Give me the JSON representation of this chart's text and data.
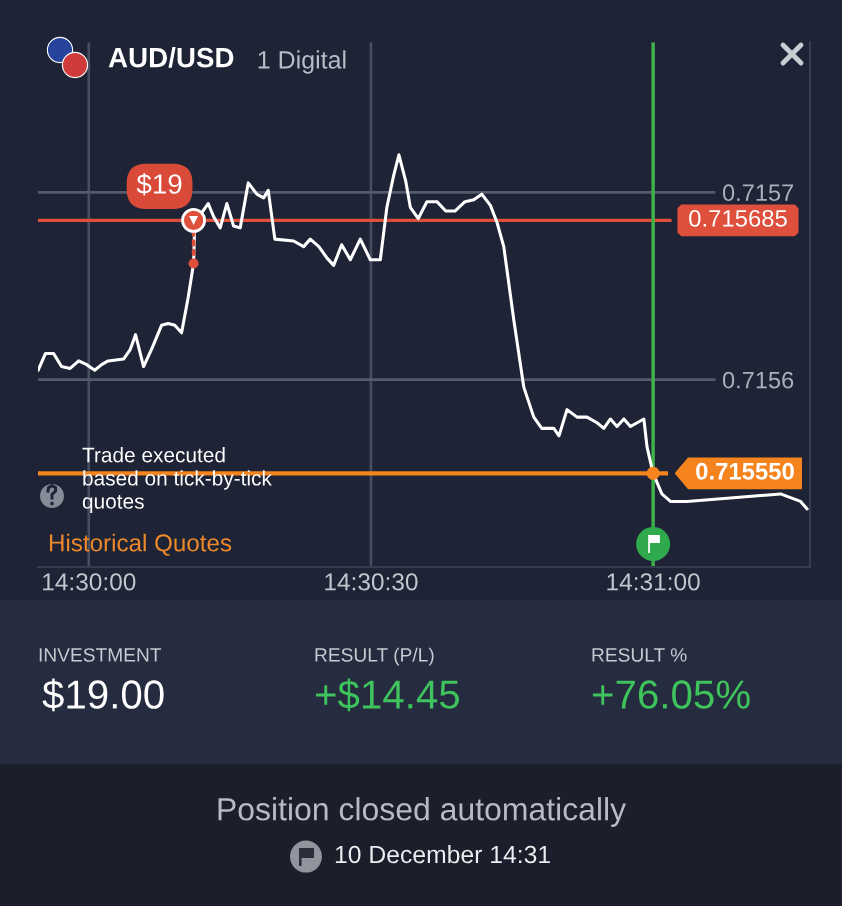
{
  "chart_data": {
    "type": "line",
    "title": "AUD/USD",
    "subtitle": "1 Digital",
    "x": [
      14.498503,
      14.498722,
      14.498958,
      14.499194,
      14.499448,
      14.499703,
      14.499939,
      14.500176,
      14.500377,
      14.500571,
      14.501027,
      14.501222,
      14.501381,
      14.501618,
      14.501872,
      14.502149,
      14.502345,
      14.50254,
      14.502741,
      14.502936,
      14.503095,
      14.503131,
      14.503332,
      14.503527,
      14.503686,
      14.503881,
      14.504076,
      14.504277,
      14.504472,
      14.504709,
      14.504963,
      14.505164,
      14.5053,
      14.505495,
      14.50605,
      14.506346,
      14.506541,
      14.506795,
      14.507031,
      14.507232,
      14.507469,
      14.507723,
      14.508018,
      14.508314,
      14.508609,
      14.508804,
      14.509005,
      14.509159,
      14.50936,
      14.509496,
      14.509732,
      14.509986,
      14.510282,
      14.510542,
      14.510814,
      14.511109,
      14.511369,
      14.511606,
      14.51186,
      14.512055,
      14.512256,
      14.512551,
      14.512847,
      14.513142,
      14.513379,
      14.513734,
      14.513887,
      14.514124,
      14.514419,
      14.514715,
      14.51501,
      14.515211,
      14.515406,
      14.515601,
      14.515802,
      14.515997,
      14.516393,
      14.516488,
      14.516667,
      14.516925,
      14.517179,
      14.51767,
      14.52043,
      14.520725,
      14.521021,
      14.521216
    ],
    "series": [
      {
        "color": "#ffffff",
        "values": [
          0.715605,
          0.715614,
          0.715614,
          0.715607,
          0.715606,
          0.71561,
          0.715608,
          0.715605,
          0.715608,
          0.71561,
          0.715611,
          0.715616,
          0.715624,
          0.715607,
          0.715617,
          0.715629,
          0.71563,
          0.715629,
          0.715625,
          0.715644,
          0.715662,
          0.715685,
          0.715689,
          0.715694,
          0.715687,
          0.715681,
          0.715694,
          0.715682,
          0.715681,
          0.715705,
          0.715699,
          0.715697,
          0.715701,
          0.715675,
          0.715674,
          0.715671,
          0.715675,
          0.715671,
          0.715665,
          0.715661,
          0.715672,
          0.715664,
          0.715675,
          0.715664,
          0.715664,
          0.715692,
          0.715709,
          0.71572,
          0.715706,
          0.715692,
          0.715686,
          0.715695,
          0.715695,
          0.71569,
          0.71569,
          0.715695,
          0.715696,
          0.715699,
          0.715693,
          0.715684,
          0.715671,
          0.715632,
          0.715596,
          0.71558,
          0.715574,
          0.715574,
          0.71557,
          0.715584,
          0.71558,
          0.71558,
          0.715577,
          0.715574,
          0.715579,
          0.715575,
          0.715579,
          0.715575,
          0.715579,
          0.715564,
          0.71555,
          0.715539,
          0.715535,
          0.715535,
          0.715539,
          0.715537,
          0.715535,
          0.715531
        ]
      },
      {
        "type": "scatter",
        "color": "#de4f3c",
        "marker": "circle",
        "values": [
          null,
          null,
          null,
          null,
          null,
          null,
          null,
          null,
          null,
          null,
          null,
          null,
          null,
          null,
          null,
          null,
          null,
          null,
          null,
          null,
          0.715685,
          null,
          null,
          null,
          null,
          null,
          null,
          null,
          null,
          null,
          null,
          null,
          null,
          null,
          null,
          null,
          null,
          null,
          null,
          null,
          null,
          null,
          null,
          null,
          null,
          null,
          null,
          null,
          null,
          null,
          null,
          null,
          null,
          null,
          null,
          null,
          null,
          null,
          null,
          null,
          null,
          null,
          null,
          null,
          null,
          null,
          null,
          null,
          null,
          null,
          null,
          null,
          null,
          null,
          null,
          null,
          null,
          null,
          null,
          null,
          null,
          null,
          null,
          null,
          null,
          null
        ]
      },
      {
        "type": "scatter",
        "color": "#de4f3c",
        "marker": "circle",
        "values": [
          null,
          null,
          null,
          null,
          null,
          null,
          null,
          null,
          null,
          null,
          null,
          null,
          null,
          null,
          null,
          null,
          null,
          null,
          null,
          null,
          0.715662,
          null,
          null,
          null,
          null,
          null,
          null,
          null,
          null,
          null,
          null,
          null,
          null,
          null,
          null,
          null,
          null,
          null,
          null,
          null,
          null,
          null,
          null,
          null,
          null,
          null,
          null,
          null,
          null,
          null,
          null,
          null,
          null,
          null,
          null,
          null,
          null,
          null,
          null,
          null,
          null,
          null,
          null,
          null,
          null,
          null,
          null,
          null,
          null,
          null,
          null,
          null,
          null,
          null,
          null,
          null,
          null,
          null,
          null,
          null,
          null,
          null,
          null,
          null,
          null,
          null
        ]
      },
      {
        "type": "scatter",
        "color": "#f5841f",
        "marker": "circle",
        "values": [
          null,
          null,
          null,
          null,
          null,
          null,
          null,
          null,
          null,
          null,
          null,
          null,
          null,
          null,
          null,
          null,
          null,
          null,
          null,
          null,
          null,
          null,
          null,
          null,
          null,
          null,
          null,
          null,
          null,
          null,
          null,
          null,
          null,
          null,
          null,
          null,
          null,
          null,
          null,
          null,
          null,
          null,
          null,
          null,
          null,
          null,
          null,
          null,
          null,
          null,
          null,
          null,
          null,
          null,
          null,
          null,
          null,
          null,
          null,
          null,
          null,
          null,
          null,
          null,
          null,
          null,
          null,
          null,
          null,
          null,
          null,
          null,
          null,
          null,
          null,
          null,
          null,
          null,
          0.71555,
          null,
          null,
          null,
          null,
          null,
          null,
          null
        ]
      }
    ],
    "xlim": [
      14.4985,
      14.5213
    ],
    "ylim": [
      0.7155,
      0.71578
    ],
    "xticks": [
      {
        "value": 14.5,
        "label": "14:30:00"
      },
      {
        "value": 14.508333,
        "label": "14:30:30"
      },
      {
        "value": 14.516667,
        "label": "14:31:00"
      }
    ],
    "yticks": [
      0.7156,
      0.7157
    ],
    "grid": true,
    "marker": "none",
    "line_style": "solid",
    "ref_lines": [
      {
        "axis": "y",
        "value": 0.715685,
        "label": "0.715685",
        "color": "#de4f3c"
      },
      {
        "axis": "y",
        "value": 0.71555,
        "label": "0.715550",
        "color": "#f5841f"
      },
      {
        "axis": "x",
        "value": 14.516667,
        "color": "#3db54a"
      }
    ],
    "annotations": [
      {
        "text": "$19",
        "x": 14.503095,
        "y": 0.715685
      },
      "Trade executed\nbased on tick-by-tick\nquotes",
      "Historical Quotes",
      "INVESTMENT",
      "$19.00",
      "RESULT (P/L)",
      "+$14.45",
      "RESULT %",
      "+76.05%",
      "Position closed automatically",
      "10 December 14:31"
    ]
  }
}
